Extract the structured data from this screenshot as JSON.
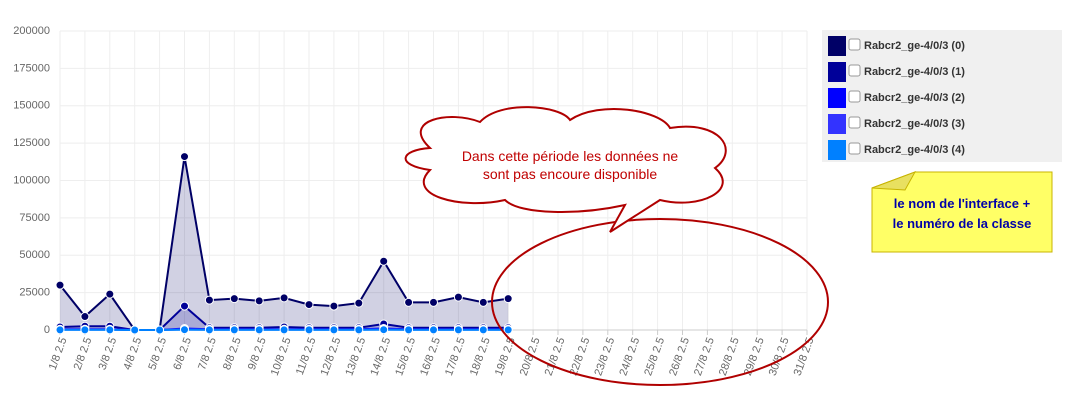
{
  "chart_data": {
    "type": "line",
    "categories": [
      "1/8 2.5",
      "2/8 2.5",
      "3/8 2.5",
      "4/8 2.5",
      "5/8 2.5",
      "6/8 2.5",
      "7/8 2.5",
      "8/8 2.5",
      "9/8 2.5",
      "10/8 2.5",
      "11/8 2.5",
      "12/8 2.5",
      "13/8 2.5",
      "14/8 2.5",
      "15/8 2.5",
      "16/8 2.5",
      "17/8 2.5",
      "18/8 2.5",
      "19/8 2.5",
      "20/8 2.5",
      "21/8 2.5",
      "22/8 2.5",
      "23/8 2.5",
      "24/8 2.5",
      "25/8 2.5",
      "26/8 2.5",
      "27/8 2.5",
      "28/8 2.5",
      "29/8 2.5",
      "30/8 2.5",
      "31/8 2.5"
    ],
    "series": [
      {
        "name": "Rabcr2_ge-4/0/3 (0)",
        "color": "#000066",
        "values": [
          30000,
          9000,
          24000,
          0,
          0,
          116000,
          20000,
          21000,
          19500,
          21500,
          17000,
          16000,
          18000,
          46000,
          18500,
          18500,
          22000,
          18500,
          21000,
          null,
          null,
          null,
          null,
          null,
          null,
          null,
          null,
          null,
          null,
          null,
          null
        ]
      },
      {
        "name": "Rabcr2_ge-4/0/3 (1)",
        "color": "#000099",
        "values": [
          2000,
          2500,
          2500,
          0,
          0,
          16000,
          1500,
          1500,
          1500,
          2000,
          1500,
          1500,
          1500,
          4000,
          1500,
          1500,
          1500,
          1500,
          1500,
          null,
          null,
          null,
          null,
          null,
          null,
          null,
          null,
          null,
          null,
          null,
          null
        ]
      },
      {
        "name": "Rabcr2_ge-4/0/3 (2)",
        "color": "#0000ff",
        "values": [
          500,
          500,
          500,
          0,
          0,
          1000,
          500,
          500,
          500,
          500,
          500,
          500,
          500,
          1000,
          500,
          500,
          500,
          500,
          500,
          null,
          null,
          null,
          null,
          null,
          null,
          null,
          null,
          null,
          null,
          null,
          null
        ]
      },
      {
        "name": "Rabcr2_ge-4/0/3 (3)",
        "color": "#3333ff",
        "values": [
          300,
          300,
          300,
          0,
          0,
          500,
          300,
          300,
          300,
          300,
          300,
          300,
          300,
          500,
          300,
          300,
          300,
          300,
          300,
          null,
          null,
          null,
          null,
          null,
          null,
          null,
          null,
          null,
          null,
          null,
          null
        ]
      },
      {
        "name": "Rabcr2_ge-4/0/3 (4)",
        "color": "#0080ff",
        "values": [
          100,
          100,
          100,
          0,
          0,
          200,
          100,
          100,
          100,
          100,
          100,
          100,
          100,
          200,
          100,
          100,
          100,
          100,
          100,
          null,
          null,
          null,
          null,
          null,
          null,
          null,
          null,
          null,
          null,
          null,
          null
        ]
      }
    ],
    "ylim": [
      0,
      200000
    ],
    "yticks": [
      0,
      25000,
      50000,
      75000,
      100000,
      125000,
      150000,
      175000,
      200000
    ],
    "grid": true,
    "legend": "right",
    "annotations": [
      "Dans cette période les données ne sont pas encoure disponible",
      "le nom de l'interface + le numéro de la classe"
    ]
  }
}
